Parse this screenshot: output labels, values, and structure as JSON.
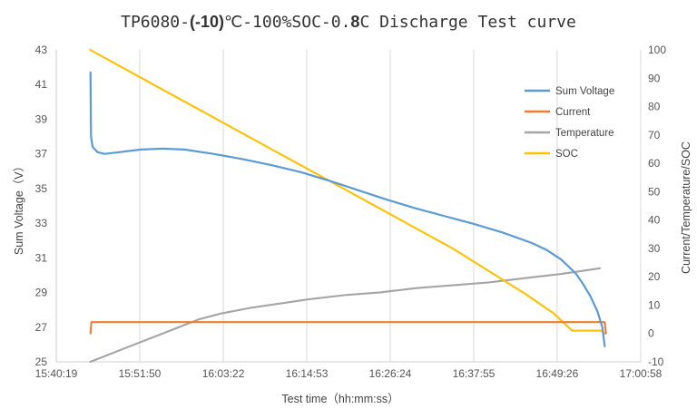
{
  "chart_data": {
    "type": "line",
    "title_parts": [
      "TP6080-",
      "(-10)",
      "℃-100%SOC-0.",
      "8",
      "C Discharge Test curve"
    ],
    "xlabel": "Test time（hh:mm:ss）",
    "ylabel_left": "Sum Voltage（V）",
    "ylabel_right": "Current/Temperature/SOC",
    "x_start": "15:40:19",
    "x_end": "17:00:58",
    "x_ticks": [
      "15:40:19",
      "15:51:50",
      "16:03:22",
      "16:14:53",
      "16:26:24",
      "16:37:55",
      "16:49:26",
      "17:00:58"
    ],
    "ylim_left": [
      25,
      43
    ],
    "yticks_left": [
      "25",
      "27",
      "29",
      "31",
      "33",
      "35",
      "37",
      "39",
      "41",
      "43"
    ],
    "ylim_right": [
      -10,
      100
    ],
    "yticks_right": [
      "-10",
      "0",
      "10",
      "20",
      "30",
      "40",
      "50",
      "60",
      "70",
      "80",
      "90",
      "100"
    ],
    "grid": "vertical",
    "legend_position": "top-right",
    "series": [
      {
        "name": "Sum Voltage",
        "axis": "left",
        "color": "#5b9bd5",
        "x": [
          "15:45:02",
          "15:45:07",
          "15:45:20",
          "15:46:00",
          "15:47:00",
          "15:49:00",
          "15:52:00",
          "15:55:00",
          "15:58:00",
          "16:02:00",
          "16:06:00",
          "16:10:00",
          "16:14:00",
          "16:18:00",
          "16:22:00",
          "16:26:00",
          "16:30:00",
          "16:34:00",
          "16:38:00",
          "16:42:00",
          "16:46:00",
          "16:48:00",
          "16:50:00",
          "16:52:00",
          "16:53:00",
          "16:54:00",
          "16:55:00",
          "16:55:40",
          "16:56:00"
        ],
        "values": [
          41.7,
          38.0,
          37.4,
          37.1,
          37.0,
          37.1,
          37.25,
          37.3,
          37.25,
          37.0,
          36.7,
          36.35,
          35.95,
          35.45,
          34.9,
          34.35,
          33.85,
          33.4,
          32.95,
          32.45,
          31.85,
          31.45,
          30.9,
          30.1,
          29.5,
          28.8,
          27.9,
          27.0,
          25.9
        ]
      },
      {
        "name": "Current",
        "axis": "right",
        "color": "#ed7d31",
        "x": [
          "15:45:02",
          "15:45:10",
          "16:56:00",
          "16:56:10"
        ],
        "values": [
          0,
          4,
          4,
          0
        ]
      },
      {
        "name": "Temperature",
        "axis": "right",
        "color": "#a5a5a5",
        "x": [
          "15:45:00",
          "15:48:00",
          "15:51:00",
          "15:54:00",
          "15:57:00",
          "16:00:00",
          "16:03:00",
          "16:07:00",
          "16:11:00",
          "16:15:00",
          "16:20:00",
          "16:25:00",
          "16:30:00",
          "16:35:00",
          "16:40:00",
          "16:45:00",
          "16:50:00",
          "16:54:00",
          "16:55:20"
        ],
        "values": [
          -10,
          -7,
          -4,
          -1,
          2,
          5,
          7,
          9,
          10.5,
          12,
          13.5,
          14.5,
          16,
          17,
          18,
          19.5,
          21,
          22.5,
          23
        ]
      },
      {
        "name": "SOC",
        "axis": "right",
        "color": "#ffc000",
        "x": [
          "15:45:00",
          "15:50:00",
          "15:55:00",
          "16:00:00",
          "16:05:00",
          "16:10:00",
          "16:15:00",
          "16:20:00",
          "16:25:00",
          "16:30:00",
          "16:35:00",
          "16:40:00",
          "16:45:00",
          "16:49:00",
          "16:51:30",
          "16:55:30",
          "16:56:00"
        ],
        "values": [
          100,
          93,
          86,
          79,
          72,
          65,
          58,
          51,
          44,
          37,
          30,
          22,
          14,
          7,
          1,
          1,
          0
        ]
      }
    ]
  }
}
